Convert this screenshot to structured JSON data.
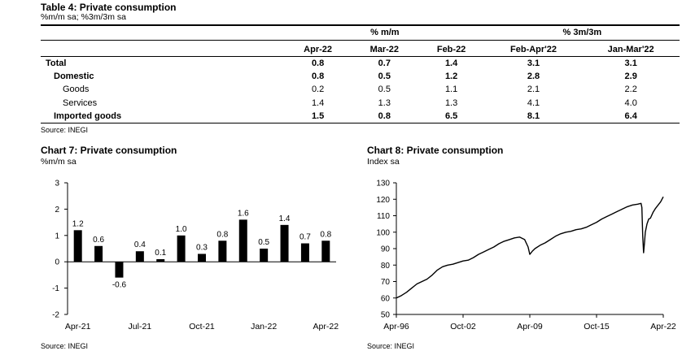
{
  "table": {
    "title": "Table 4: Private consumption",
    "subtitle": "%m/m sa; %3m/3m sa",
    "group_mm": "% m/m",
    "group_3m": "% 3m/3m",
    "columns": [
      "Apr-22",
      "Mar-22",
      "Feb-22",
      "Feb-Apr'22",
      "Jan-Mar'22"
    ],
    "rows": [
      {
        "label": "Total",
        "values": [
          "0.8",
          "0.7",
          "1.4",
          "3.1",
          "3.1"
        ],
        "bold": true,
        "level": 0
      },
      {
        "label": "Domestic",
        "values": [
          "0.8",
          "0.5",
          "1.2",
          "2.8",
          "2.9"
        ],
        "bold": true,
        "level": 1
      },
      {
        "label": "Goods",
        "values": [
          "0.2",
          "0.5",
          "1.1",
          "2.1",
          "2.2"
        ],
        "bold": false,
        "level": 2
      },
      {
        "label": "Services",
        "values": [
          "1.4",
          "1.3",
          "1.3",
          "4.1",
          "4.0"
        ],
        "bold": false,
        "level": 2
      },
      {
        "label": "Imported goods",
        "values": [
          "1.5",
          "0.8",
          "6.5",
          "8.1",
          "6.4"
        ],
        "bold": true,
        "level": 1
      }
    ],
    "source": "Source: INEGI"
  },
  "chart_data": [
    {
      "type": "bar",
      "title": "Chart 7: Private consumption",
      "subtitle": "%m/m sa",
      "categories": [
        "Apr-21",
        "May-21",
        "Jun-21",
        "Jul-21",
        "Aug-21",
        "Sep-21",
        "Oct-21",
        "Nov-21",
        "Dec-21",
        "Jan-22",
        "Feb-22",
        "Mar-22",
        "Apr-22"
      ],
      "values": [
        1.2,
        0.6,
        -0.6,
        0.4,
        0.1,
        1.0,
        0.3,
        0.8,
        1.6,
        0.5,
        1.4,
        0.7,
        0.8
      ],
      "data_labels": [
        "1.2",
        "0.6",
        "-0.6",
        "0.4",
        "0.1",
        "1.0",
        "0.3",
        "0.8",
        "1.6",
        "0.5",
        "1.4",
        "0.7",
        "0.8"
      ],
      "x_tick_labels": [
        "Apr-21",
        "Jul-21",
        "Oct-21",
        "Jan-22",
        "Apr-22"
      ],
      "ylim": [
        -2,
        3
      ],
      "y_ticks": [
        "-2",
        "-1",
        "0",
        "1",
        "2",
        "3"
      ],
      "grid": false,
      "bar_color": "#000000",
      "source": "Source: INEGI"
    },
    {
      "type": "line",
      "title": "Chart 8: Private consumption",
      "subtitle": "Index sa",
      "x_range": [
        "1996-04",
        "2022-04"
      ],
      "x_tick_labels": [
        "Apr-96",
        "Oct-02",
        "Apr-09",
        "Oct-15",
        "Apr-22"
      ],
      "ylim": [
        50,
        130
      ],
      "y_ticks": [
        "50",
        "60",
        "70",
        "80",
        "90",
        "100",
        "110",
        "120",
        "130"
      ],
      "grid": false,
      "line_color": "#000000",
      "series": [
        {
          "points": [
            [
              "1996-04",
              60.0
            ],
            [
              "1996-10",
              61.5
            ],
            [
              "1997-04",
              63.5
            ],
            [
              "1997-10",
              66.0
            ],
            [
              "1998-04",
              68.5
            ],
            [
              "1998-10",
              70.0
            ],
            [
              "1999-04",
              71.5
            ],
            [
              "1999-10",
              74.0
            ],
            [
              "2000-04",
              77.0
            ],
            [
              "2000-10",
              79.0
            ],
            [
              "2001-04",
              80.0
            ],
            [
              "2001-10",
              80.5
            ],
            [
              "2002-04",
              81.5
            ],
            [
              "2002-10",
              82.5
            ],
            [
              "2003-04",
              83.0
            ],
            [
              "2003-10",
              84.5
            ],
            [
              "2004-04",
              86.5
            ],
            [
              "2004-10",
              88.0
            ],
            [
              "2005-04",
              89.5
            ],
            [
              "2005-10",
              91.0
            ],
            [
              "2006-04",
              93.0
            ],
            [
              "2006-10",
              94.5
            ],
            [
              "2007-04",
              95.5
            ],
            [
              "2007-10",
              96.5
            ],
            [
              "2008-04",
              97.0
            ],
            [
              "2008-10",
              95.5
            ],
            [
              "2009-02",
              91.0
            ],
            [
              "2009-04",
              86.5
            ],
            [
              "2009-07",
              88.5
            ],
            [
              "2009-10",
              90.0
            ],
            [
              "2010-04",
              92.0
            ],
            [
              "2010-10",
              93.5
            ],
            [
              "2011-04",
              95.5
            ],
            [
              "2011-10",
              97.5
            ],
            [
              "2012-04",
              99.0
            ],
            [
              "2012-10",
              100.0
            ],
            [
              "2013-04",
              100.5
            ],
            [
              "2013-10",
              101.5
            ],
            [
              "2014-04",
              102.0
            ],
            [
              "2014-10",
              103.0
            ],
            [
              "2015-04",
              104.5
            ],
            [
              "2015-10",
              106.0
            ],
            [
              "2016-04",
              108.0
            ],
            [
              "2016-10",
              109.5
            ],
            [
              "2017-04",
              111.0
            ],
            [
              "2017-10",
              112.5
            ],
            [
              "2018-04",
              114.0
            ],
            [
              "2018-10",
              115.5
            ],
            [
              "2019-04",
              116.5
            ],
            [
              "2019-10",
              117.0
            ],
            [
              "2020-02",
              117.5
            ],
            [
              "2020-03",
              115.0
            ],
            [
              "2020-04",
              97.0
            ],
            [
              "2020-05",
              87.5
            ],
            [
              "2020-06",
              93.5
            ],
            [
              "2020-07",
              100.0
            ],
            [
              "2020-09",
              105.0
            ],
            [
              "2020-11",
              108.0
            ],
            [
              "2021-01",
              108.5
            ],
            [
              "2021-04",
              112.0
            ],
            [
              "2021-07",
              114.5
            ],
            [
              "2021-10",
              116.5
            ],
            [
              "2022-01",
              118.5
            ],
            [
              "2022-04",
              121.5
            ]
          ]
        }
      ],
      "source": "Source: INEGI"
    }
  ]
}
